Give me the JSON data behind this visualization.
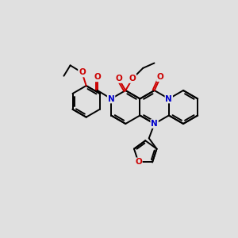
{
  "bg_color": "#e0e0e0",
  "N_color": "#0000cc",
  "O_color": "#cc0000",
  "C_color": "#000000",
  "bond_lw": 1.4,
  "figsize": [
    3.0,
    3.0
  ],
  "dpi": 100,
  "xlim": [
    0,
    10
  ],
  "ylim": [
    0,
    10
  ]
}
